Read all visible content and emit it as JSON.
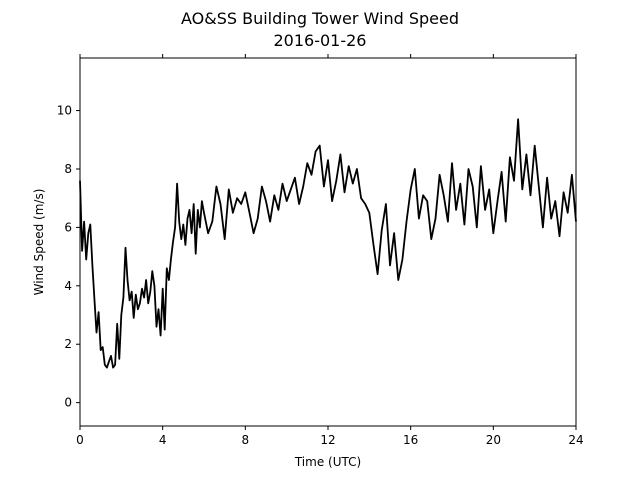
{
  "chart_data": {
    "type": "line",
    "title": "AO&SS Building Tower Wind Speed",
    "subtitle": "2016-01-26",
    "xlabel": "Time (UTC)",
    "ylabel": "Wind Speed (m/s)",
    "xlim": [
      0,
      24
    ],
    "ylim": [
      -0.8,
      11.8
    ],
    "x_ticks": [
      0,
      4,
      8,
      12,
      16,
      20,
      24
    ],
    "y_ticks": [
      0,
      2,
      4,
      6,
      8,
      10
    ],
    "grid": false,
    "line_color": "#000000",
    "series": [
      {
        "x": [
          0.0,
          0.1,
          0.2,
          0.3,
          0.4,
          0.5,
          0.6,
          0.7,
          0.8,
          0.9,
          1.0,
          1.1,
          1.2,
          1.3,
          1.4,
          1.5,
          1.6,
          1.7,
          1.8,
          1.9,
          2.0,
          2.1,
          2.2,
          2.3,
          2.4,
          2.5,
          2.6,
          2.7,
          2.8,
          2.9,
          3.0,
          3.1,
          3.2,
          3.3,
          3.4,
          3.5,
          3.6,
          3.7,
          3.8,
          3.9,
          4.0,
          4.1,
          4.2,
          4.3,
          4.4,
          4.5,
          4.6,
          4.7,
          4.8,
          4.9,
          5.0,
          5.1,
          5.2,
          5.3,
          5.4,
          5.5,
          5.6,
          5.7,
          5.8,
          5.9,
          6.0,
          6.2,
          6.4,
          6.6,
          6.8,
          7.0,
          7.2,
          7.4,
          7.6,
          7.8,
          8.0,
          8.2,
          8.4,
          8.6,
          8.8,
          9.0,
          9.2,
          9.4,
          9.6,
          9.8,
          10.0,
          10.2,
          10.4,
          10.6,
          10.8,
          11.0,
          11.2,
          11.4,
          11.6,
          11.8,
          12.0,
          12.2,
          12.4,
          12.6,
          12.8,
          13.0,
          13.2,
          13.4,
          13.6,
          13.8,
          14.0,
          14.2,
          14.4,
          14.6,
          14.8,
          15.0,
          15.2,
          15.4,
          15.6,
          15.8,
          16.0,
          16.2,
          16.4,
          16.6,
          16.8,
          17.0,
          17.2,
          17.4,
          17.6,
          17.8,
          18.0,
          18.2,
          18.4,
          18.6,
          18.8,
          19.0,
          19.2,
          19.4,
          19.6,
          19.8,
          20.0,
          20.2,
          20.4,
          20.6,
          20.8,
          21.0,
          21.2,
          21.4,
          21.6,
          21.8,
          22.0,
          22.2,
          22.4,
          22.6,
          22.8,
          23.0,
          23.2,
          23.4,
          23.6,
          23.8,
          24.0
        ],
        "values": [
          7.6,
          5.2,
          6.2,
          4.9,
          5.8,
          6.1,
          4.7,
          3.5,
          2.4,
          3.1,
          1.8,
          1.9,
          1.3,
          1.2,
          1.4,
          1.6,
          1.2,
          1.3,
          2.7,
          1.5,
          3.0,
          3.6,
          5.3,
          4.2,
          3.5,
          3.8,
          2.9,
          3.7,
          3.2,
          3.4,
          3.9,
          3.6,
          4.2,
          3.4,
          3.8,
          4.5,
          4.0,
          2.6,
          3.2,
          2.3,
          3.9,
          2.5,
          4.6,
          4.2,
          4.9,
          5.5,
          6.0,
          7.5,
          6.2,
          5.6,
          6.1,
          5.4,
          6.3,
          6.6,
          5.8,
          6.8,
          5.1,
          6.6,
          6.0,
          6.9,
          6.5,
          5.8,
          6.2,
          7.4,
          6.8,
          5.6,
          7.3,
          6.5,
          7.0,
          6.8,
          7.2,
          6.5,
          5.8,
          6.3,
          7.4,
          6.9,
          6.2,
          7.1,
          6.6,
          7.5,
          6.9,
          7.3,
          7.7,
          6.8,
          7.4,
          8.2,
          7.8,
          8.6,
          8.8,
          7.4,
          8.3,
          6.9,
          7.6,
          8.5,
          7.2,
          8.1,
          7.5,
          8.0,
          7.0,
          6.8,
          6.5,
          5.4,
          4.4,
          5.9,
          6.8,
          4.7,
          5.8,
          4.2,
          4.9,
          6.2,
          7.3,
          8.0,
          6.3,
          7.1,
          6.9,
          5.6,
          6.3,
          7.8,
          7.1,
          6.2,
          8.2,
          6.6,
          7.5,
          6.1,
          8.0,
          7.4,
          6.0,
          8.1,
          6.6,
          7.3,
          5.8,
          6.9,
          7.9,
          6.2,
          8.4,
          7.6,
          9.7,
          7.3,
          8.5,
          7.1,
          8.8,
          7.4,
          6.0,
          7.7,
          6.3,
          6.9,
          5.7,
          7.2,
          6.5,
          7.8,
          6.2
        ]
      }
    ]
  }
}
